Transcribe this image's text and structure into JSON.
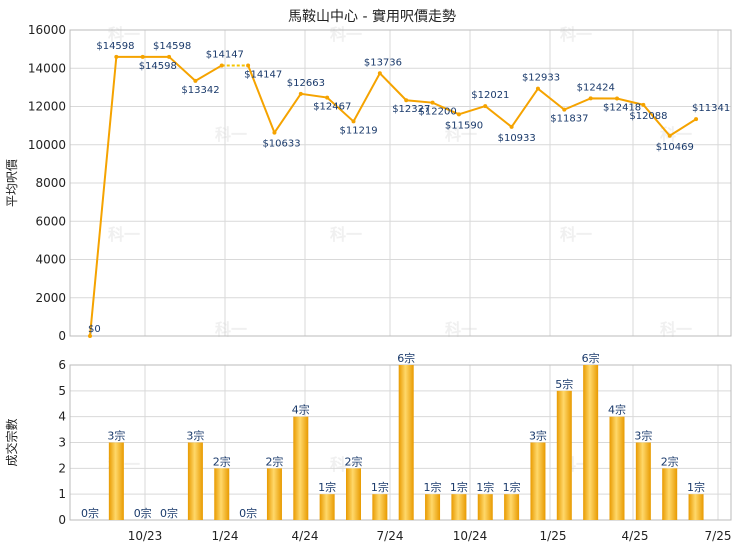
{
  "chart_data": [
    {
      "type": "line",
      "title": "馬鞍山中心 - 實用呎價走勢",
      "ylabel": "平均呎價",
      "ylim": [
        0,
        16000
      ],
      "yticks": [
        0,
        2000,
        4000,
        6000,
        8000,
        10000,
        12000,
        14000,
        16000
      ],
      "grid": true,
      "line_color": "#f5a300",
      "dashed_segment_color": "#f5c400",
      "series": [
        {
          "values": [
            0,
            14598,
            14598,
            14598,
            13342,
            14147,
            14147,
            10633,
            12663,
            12467,
            11219,
            13736,
            12327,
            12200,
            11590,
            12021,
            10933,
            12933,
            11837,
            12424,
            12418,
            12088,
            10469,
            11341
          ],
          "labels": [
            "$0",
            "$14598",
            "$14598",
            "$14598",
            "$13342",
            "$14147",
            "$14147",
            "$10633",
            "$12663",
            "$12467",
            "$11219",
            "$13736",
            "$12327",
            "$12200",
            "$11590",
            "$12021",
            "$10933",
            "$12933",
            "$11837",
            "$12424",
            "$12418",
            "$12088",
            "$10469",
            "$11341"
          ]
        }
      ]
    },
    {
      "type": "bar",
      "ylabel": "成交宗數",
      "ylim": [
        0,
        6
      ],
      "yticks": [
        0,
        1,
        2,
        3,
        4,
        5,
        6
      ],
      "grid": true,
      "bar_color": "#f5b21e",
      "x_tick_labels": [
        "10/23",
        "1/24",
        "4/24",
        "7/24",
        "10/24",
        "1/25",
        "4/25",
        "7/25"
      ],
      "values": [
        0,
        3,
        0,
        0,
        3,
        2,
        0,
        2,
        4,
        1,
        2,
        1,
        6,
        1,
        1,
        1,
        1,
        3,
        5,
        6,
        4,
        3,
        2,
        1
      ],
      "labels": [
        "0宗",
        "3宗",
        "0宗",
        "0宗",
        "3宗",
        "2宗",
        "0宗",
        "2宗",
        "4宗",
        "1宗",
        "2宗",
        "1宗",
        "6宗",
        "1宗",
        "1宗",
        "1宗",
        "1宗",
        "3宗",
        "5宗",
        "6宗",
        "4宗",
        "3宗",
        "2宗",
        "1宗"
      ]
    }
  ],
  "watermark": "科一"
}
